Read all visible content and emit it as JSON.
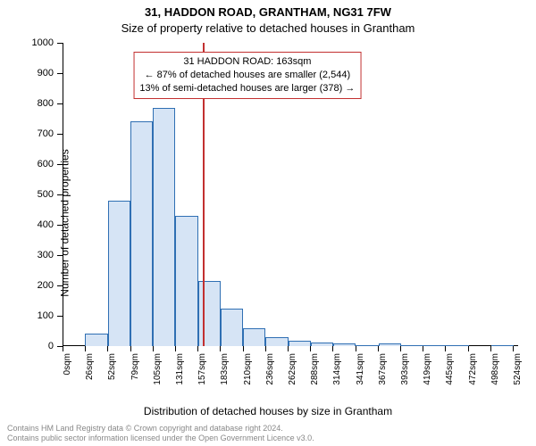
{
  "title_line1": "31, HADDON ROAD, GRANTHAM, NG31 7FW",
  "title_line2": "Size of property relative to detached houses in Grantham",
  "ylabel": "Number of detached properties",
  "xlabel": "Distribution of detached houses by size in Grantham",
  "credit_line1": "Contains HM Land Registry data © Crown copyright and database right 2024.",
  "credit_line2": "Contains public sector information licensed under the Open Government Licence v3.0.",
  "chart": {
    "type": "histogram",
    "background_color": "#ffffff",
    "bar_fill": "#d6e4f5",
    "bar_stroke": "#2f6fb3",
    "refline_color": "#c23030",
    "axis_color": "#000000",
    "tick_fontsize": 11,
    "label_fontsize": 12,
    "ylim": [
      0,
      1000
    ],
    "ytick_step": 100,
    "x_max_sqm": 530,
    "bin_width_sqm": 26.25,
    "x_ticks_sqm": [
      0,
      26,
      52,
      79,
      105,
      131,
      157,
      183,
      210,
      236,
      262,
      288,
      314,
      341,
      367,
      393,
      419,
      445,
      472,
      498,
      524
    ],
    "x_tick_labels": [
      "0sqm",
      "26sqm",
      "52sqm",
      "79sqm",
      "105sqm",
      "131sqm",
      "157sqm",
      "183sqm",
      "210sqm",
      "236sqm",
      "262sqm",
      "288sqm",
      "314sqm",
      "341sqm",
      "367sqm",
      "393sqm",
      "419sqm",
      "445sqm",
      "472sqm",
      "498sqm",
      "524sqm"
    ],
    "bars": [
      {
        "bin": 0,
        "value": 0
      },
      {
        "bin": 1,
        "value": 40
      },
      {
        "bin": 2,
        "value": 480
      },
      {
        "bin": 3,
        "value": 740
      },
      {
        "bin": 4,
        "value": 785
      },
      {
        "bin": 5,
        "value": 430
      },
      {
        "bin": 6,
        "value": 215
      },
      {
        "bin": 7,
        "value": 125
      },
      {
        "bin": 8,
        "value": 60
      },
      {
        "bin": 9,
        "value": 30
      },
      {
        "bin": 10,
        "value": 18
      },
      {
        "bin": 11,
        "value": 13
      },
      {
        "bin": 12,
        "value": 8
      },
      {
        "bin": 13,
        "value": 4
      },
      {
        "bin": 14,
        "value": 8
      },
      {
        "bin": 15,
        "value": 2
      },
      {
        "bin": 16,
        "value": 2
      },
      {
        "bin": 17,
        "value": 2
      },
      {
        "bin": 18,
        "value": 0
      },
      {
        "bin": 19,
        "value": 2
      }
    ],
    "refline_sqm": 163,
    "callout": {
      "lines": [
        "31 HADDON ROAD: 163sqm",
        "← 87% of detached houses are smaller (2,544)",
        "13% of semi-detached houses are larger (378) →"
      ],
      "border_color": "#c23030",
      "text_color": "#000000",
      "top_pct": 3,
      "center_sqm": 215
    }
  }
}
